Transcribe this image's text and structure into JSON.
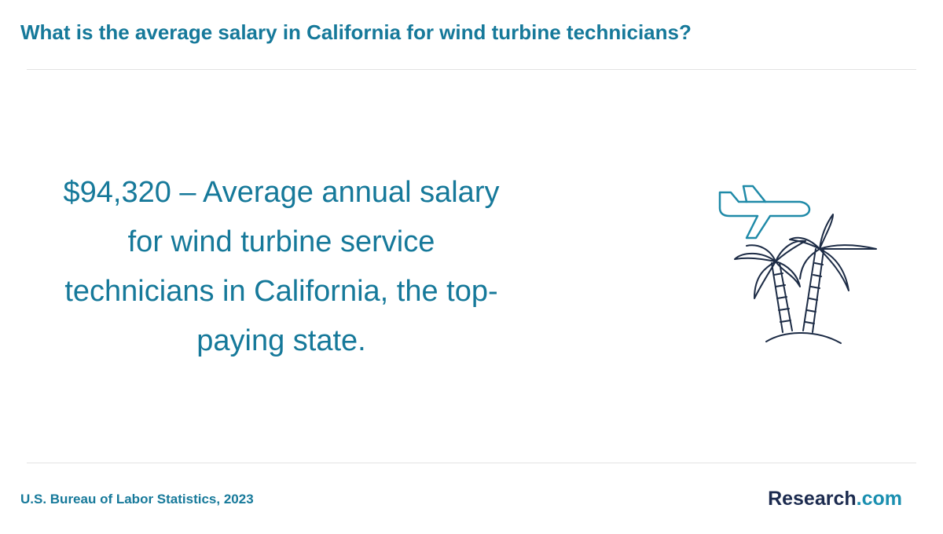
{
  "header": {
    "title": "What is the average salary in California for wind turbine technicians?"
  },
  "statement": "$94,320 – Average annual salary for wind turbine service technicians in California, the top-paying state.",
  "footer": {
    "source": "U.S. Bureau of Labor Statistics, 2023",
    "brand": {
      "name": "Research",
      "suffix": ".com"
    }
  }
}
